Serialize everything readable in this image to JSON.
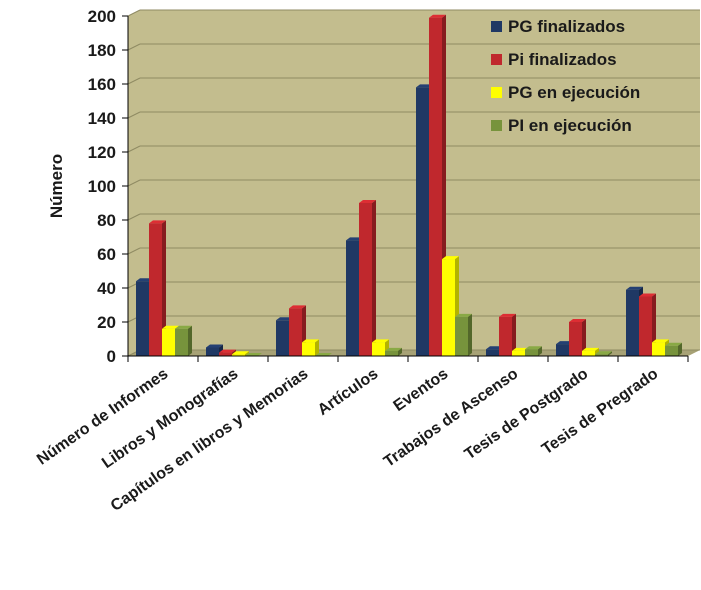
{
  "chart_data": {
    "type": "bar",
    "title": "",
    "ylabel": "Número",
    "xlabel": "",
    "ylim": [
      0,
      200
    ],
    "yticks": [
      0,
      20,
      40,
      60,
      80,
      100,
      120,
      140,
      160,
      180,
      200
    ],
    "grid": true,
    "legend_position": "top-right",
    "categories": [
      "Número de Informes",
      "Libros y Monografías",
      "Capítulos en libros y Memorias",
      "Artículos",
      "Eventos",
      "Trabajos de Ascenso",
      "Tesis de Postgrado",
      "Tesis de Pregrado"
    ],
    "series": [
      {
        "name": "PG finalizados",
        "color": "#1f3864",
        "values": [
          44,
          5,
          21,
          68,
          158,
          4,
          7,
          39
        ]
      },
      {
        "name": "Pi finalizados",
        "color": "#c0282d",
        "values": [
          78,
          2,
          28,
          90,
          199,
          23,
          20,
          35
        ]
      },
      {
        "name": "PG en ejecución",
        "color": "#ffff00",
        "values": [
          16,
          1,
          8,
          8,
          57,
          3,
          3,
          8
        ]
      },
      {
        "name": "PI en ejecución",
        "color": "#77933c",
        "values": [
          16,
          0,
          0,
          3,
          23,
          4,
          1,
          6
        ]
      }
    ],
    "plot_background": "#c3bd8e"
  }
}
